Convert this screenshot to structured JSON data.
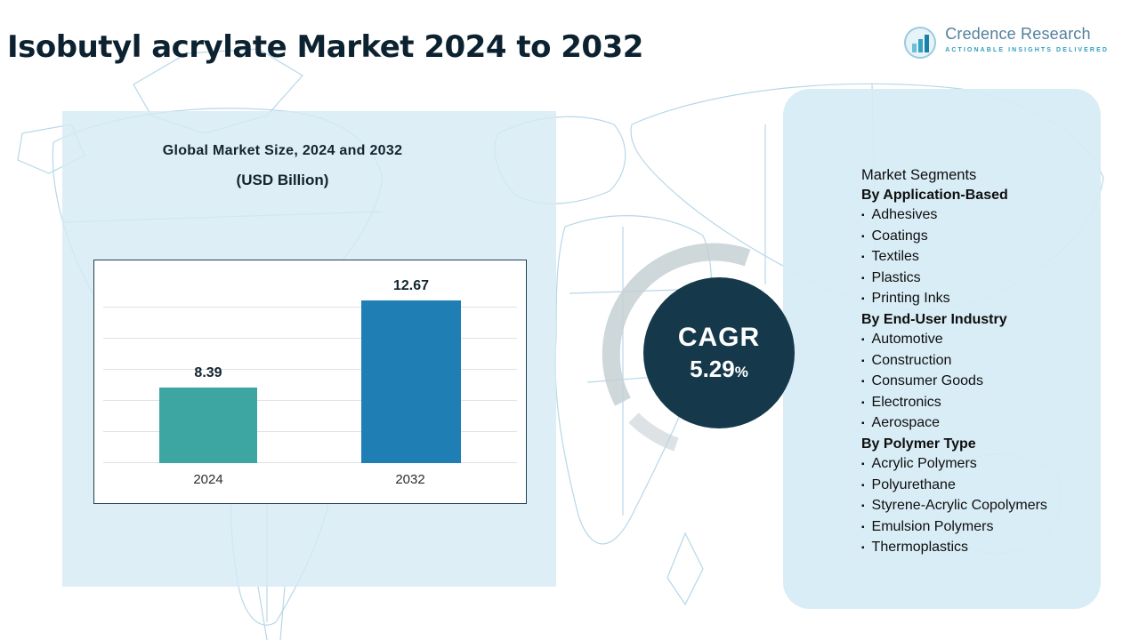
{
  "page": {
    "title": "Isobutyl acrylate Market 2024 to 2032"
  },
  "logo": {
    "name": "Credence Research",
    "tagline": "Actionable Insights Delivered"
  },
  "chart_panel": {
    "title": "Global Market Size, 2024 and 2032",
    "subtitle": "(USD Billion)"
  },
  "chart_data": {
    "type": "bar",
    "title": "Global Market Size, 2024 and 2032",
    "ylabel": "USD Billion",
    "categories": [
      "2024",
      "2032"
    ],
    "values": [
      8.39,
      12.67
    ],
    "bar_colors": [
      "#3da5a2",
      "#1f7fb5"
    ],
    "ylim": [
      0,
      14
    ],
    "grid": true,
    "legend": "none"
  },
  "cagr": {
    "label": "CAGR",
    "value": "5.29",
    "percent": "%"
  },
  "segments": {
    "title": "Market Segments",
    "bullet": "▪",
    "groups": [
      {
        "heading": "By Application-Based",
        "items": [
          "Adhesives",
          "Coatings",
          "Textiles",
          "Plastics",
          "Printing Inks"
        ]
      },
      {
        "heading": "By End-User Industry",
        "items": [
          "Automotive",
          "Construction",
          "Consumer Goods",
          "Electronics",
          "Aerospace"
        ]
      },
      {
        "heading": "By Polymer Type",
        "items": [
          "Acrylic Polymers",
          "Polyurethane",
          "Styrene-Acrylic Copolymers",
          "Emulsion Polymers",
          "Thermoplastics"
        ]
      }
    ]
  },
  "colors": {
    "bar_2024": "#3da5a2",
    "bar_2032": "#1f7fb5",
    "cagr_circle": "#15394a",
    "panel_bg": "#d6ebf4",
    "map_line": "#b7d7e8"
  }
}
